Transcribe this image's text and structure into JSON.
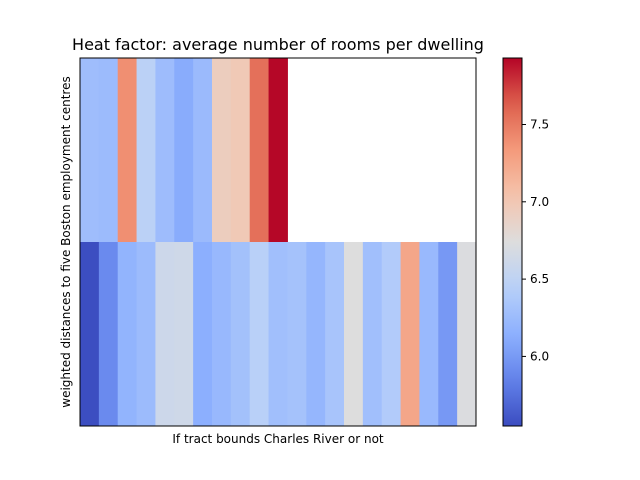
{
  "chart_data": {
    "type": "heatmap",
    "title": "Heat factor: average number of rooms per dwelling",
    "xlabel": "If tract bounds Charles River or not",
    "ylabel": "weighted distances to five Boston employment centres",
    "colormap": "coolwarm",
    "color_range": [
      5.55,
      7.93
    ],
    "colorbar_ticks": [
      "6.0",
      "6.5",
      "7.0",
      "7.5"
    ],
    "colorbar_tick_values": [
      6.0,
      6.5,
      7.0,
      7.5
    ],
    "grid": false,
    "rows": [
      {
        "label": "top",
        "values": [
          6.27,
          6.25,
          7.39,
          6.47,
          6.26,
          6.12,
          6.24,
          6.93,
          6.98,
          7.55,
          7.92
        ]
      },
      {
        "label": "bottom",
        "values": [
          5.56,
          5.9,
          6.18,
          6.25,
          6.6,
          6.62,
          6.14,
          6.22,
          6.3,
          6.45,
          6.28,
          6.31,
          6.2,
          6.33,
          6.74,
          6.28,
          6.4,
          7.25,
          6.23,
          5.99,
          6.72
        ]
      }
    ]
  },
  "colors": {
    "missing": "#ffffff",
    "frame": "#000000"
  }
}
